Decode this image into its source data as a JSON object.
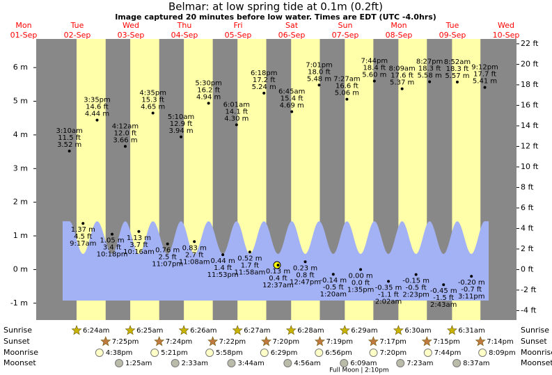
{
  "header": {
    "title": "Belmar: at low  spring tide at 0.1m (0.2ft)",
    "subtitle": "Image captured 20 minutes before low water. Times are EDT (UTC -4.0hrs)"
  },
  "chart_data": {
    "type": "tide",
    "ylim": [
      -1.5,
      6.85
    ],
    "yticks": [
      {
        "value": -1,
        "label": "-1 m"
      },
      {
        "value": 0,
        "label": "0 m"
      },
      {
        "value": 1,
        "label": "1 m"
      },
      {
        "value": 2,
        "label": "2 m"
      },
      {
        "value": 3,
        "label": "3 m"
      },
      {
        "value": 4,
        "label": "4 m"
      },
      {
        "value": 5,
        "label": "5 m"
      },
      {
        "value": 6,
        "label": "6 m"
      }
    ],
    "y2lim": [
      -4.92,
      22.47
    ],
    "y2ticks": [
      {
        "value": -4,
        "label": "-4 ft"
      },
      {
        "value": -2,
        "label": "-2 ft"
      },
      {
        "value": 0,
        "label": "0 ft"
      },
      {
        "value": 2,
        "label": "2 ft"
      },
      {
        "value": 4,
        "label": "4 ft"
      },
      {
        "value": 6,
        "label": "6 ft"
      },
      {
        "value": 8,
        "label": "8 ft"
      },
      {
        "value": 10,
        "label": "10 ft"
      },
      {
        "value": 12,
        "label": "12 ft"
      },
      {
        "value": 14,
        "label": "14 ft"
      },
      {
        "value": 16,
        "label": "16 ft"
      },
      {
        "value": 18,
        "label": "18 ft"
      },
      {
        "value": 20,
        "label": "20 ft"
      },
      {
        "value": 22,
        "label": "22 ft"
      }
    ],
    "row_labels": [
      "Sunrise",
      "Sunset",
      "Moonrise",
      "Moonset"
    ],
    "days": [
      {
        "weekday": "Mon",
        "date": "01-Sep"
      },
      {
        "weekday": "Tue",
        "date": "02-Sep",
        "sunrise": "6:24am",
        "sunset": "7:25pm",
        "moonrise": "4:38pm",
        "tides": [
          {
            "time": "3:10am",
            "feet": {
              "value": 11.5,
              "label": "11.5 ft"
            },
            "meters": {
              "value": 3.52,
              "label": "3.52 m"
            }
          },
          {
            "time": "9:17am",
            "feet": {
              "value": 4.5,
              "label": "4.5 ft"
            },
            "meters": {
              "value": 1.37,
              "label": "1.37 m"
            }
          },
          {
            "time": "3:35pm",
            "feet": {
              "value": 14.6,
              "label": "14.6 ft"
            },
            "meters": {
              "value": 4.44,
              "label": "4.44 m"
            }
          },
          {
            "time": "10:18pm",
            "feet": {
              "value": 3.4,
              "label": "3.4 ft"
            },
            "meters": {
              "value": 1.05,
              "label": "1.05 m"
            }
          }
        ]
      },
      {
        "weekday": "Wed",
        "date": "03-Sep",
        "sunrise": "6:25am",
        "sunset": "7:24pm",
        "moonrise": "5:21pm",
        "moonset": "1:25am",
        "tides": [
          {
            "time": "4:12am",
            "feet": {
              "value": 12.0,
              "label": "12.0 ft"
            },
            "meters": {
              "value": 3.66,
              "label": "3.66 m"
            }
          },
          {
            "time": "10:16am",
            "feet": {
              "value": 3.7,
              "label": "3.7 ft"
            },
            "meters": {
              "value": 1.13,
              "label": "1.13 m"
            }
          },
          {
            "time": "4:35pm",
            "feet": {
              "value": 15.3,
              "label": "15.3 ft"
            },
            "meters": {
              "value": 4.65,
              "label": "4.65 m"
            }
          },
          {
            "time": "11:07pm",
            "feet": {
              "value": 2.5,
              "label": "2.5 ft"
            },
            "meters": {
              "value": 0.76,
              "label": "0.76 m"
            }
          }
        ]
      },
      {
        "weekday": "Thu",
        "date": "04-Sep",
        "sunrise": "6:26am",
        "sunset": "7:22pm",
        "moonrise": "5:58pm",
        "moonset": "2:33am",
        "tides": [
          {
            "time": "5:10am",
            "feet": {
              "value": 12.9,
              "label": "12.9 ft"
            },
            "meters": {
              "value": 3.94,
              "label": "3.94 m"
            }
          },
          {
            "time": "11:08am",
            "feet": {
              "value": 2.7,
              "label": "2.7 ft"
            },
            "meters": {
              "value": 0.83,
              "label": "0.83 m"
            }
          },
          {
            "time": "5:30pm",
            "feet": {
              "value": 16.2,
              "label": "16.2 ft"
            },
            "meters": {
              "value": 4.94,
              "label": "4.94 m"
            }
          },
          {
            "time": "11:53pm",
            "feet": {
              "value": 1.4,
              "label": "1.4 ft"
            },
            "meters": {
              "value": 0.44,
              "label": "0.44 m"
            }
          }
        ]
      },
      {
        "weekday": "Fri",
        "date": "05-Sep",
        "sunrise": "6:27am",
        "sunset": "7:20pm",
        "moonrise": "6:29pm",
        "moonset": "3:44am",
        "tides": [
          {
            "time": "6:01am",
            "feet": {
              "value": 14.1,
              "label": "14.1 ft"
            },
            "meters": {
              "value": 4.3,
              "label": "4.30 m"
            }
          },
          {
            "time": "11:58am",
            "feet": {
              "value": 1.7,
              "label": "1.7 ft"
            },
            "meters": {
              "value": 0.52,
              "label": "0.52 m"
            }
          },
          {
            "time": "6:18pm",
            "feet": {
              "value": 17.2,
              "label": "17.2 ft"
            },
            "meters": {
              "value": 5.24,
              "label": "5.24 m"
            }
          }
        ]
      },
      {
        "weekday": "Sat",
        "date": "06-Sep",
        "sunrise": "6:28am",
        "sunset": "7:19pm",
        "moonrise": "6:56pm",
        "moonset": "4:56am",
        "tides": [
          {
            "time": "12:37am",
            "feet": {
              "value": 0.4,
              "label": "0.4 ft"
            },
            "meters": {
              "value": 0.13,
              "label": "0.13 m"
            }
          },
          {
            "time": "6:45am",
            "feet": {
              "value": 15.4,
              "label": "15.4 ft"
            },
            "meters": {
              "value": 4.69,
              "label": "4.69 m"
            }
          },
          {
            "time": "12:47pm",
            "feet": {
              "value": 0.8,
              "label": "0.8 ft"
            },
            "meters": {
              "value": 0.23,
              "label": "0.23 m"
            }
          },
          {
            "time": "7:01pm",
            "feet": {
              "value": 18.0,
              "label": "18.0 ft"
            },
            "meters": {
              "value": 5.48,
              "label": "5.48 m"
            }
          }
        ]
      },
      {
        "weekday": "Sun",
        "date": "07-Sep",
        "sunrise": "6:29am",
        "sunset": "7:17pm",
        "moonrise": "7:20pm",
        "moonset": "6:09am",
        "moon_phase": {
          "name": "Full Moon",
          "time": "2:10pm"
        },
        "tides": [
          {
            "time": "1:20am",
            "feet": {
              "value": -0.5,
              "label": "-0.5 ft"
            },
            "meters": {
              "value": -0.14,
              "label": "-0.14 m"
            }
          },
          {
            "time": "7:27am",
            "feet": {
              "value": 16.6,
              "label": "16.6 ft"
            },
            "meters": {
              "value": 5.06,
              "label": "5.06 m"
            }
          },
          {
            "time": "1:35pm",
            "feet": {
              "value": 0.0,
              "label": "0.0 ft"
            },
            "meters": {
              "value": 0.0,
              "label": "0.00 m"
            }
          },
          {
            "time": "7:44pm",
            "feet": {
              "value": 18.4,
              "label": "18.4 ft"
            },
            "meters": {
              "value": 5.6,
              "label": "5.60 m"
            }
          }
        ]
      },
      {
        "weekday": "Mon",
        "date": "08-Sep",
        "sunrise": "6:30am",
        "sunset": "7:15pm",
        "moonrise": "7:44pm",
        "moonset": "7:23am",
        "tides": [
          {
            "time": "2:02am",
            "feet": {
              "value": -1.1,
              "label": "-1.1 ft"
            },
            "meters": {
              "value": -0.35,
              "label": "-0.35 m"
            }
          },
          {
            "time": "8:09am",
            "feet": {
              "value": 17.6,
              "label": "17.6 ft"
            },
            "meters": {
              "value": 5.37,
              "label": "5.37 m"
            }
          },
          {
            "time": "2:23pm",
            "feet": {
              "value": -0.5,
              "label": "-0.5 ft"
            },
            "meters": {
              "value": -0.15,
              "label": "-0.15 m"
            }
          },
          {
            "time": "8:27pm",
            "feet": {
              "value": 18.3,
              "label": "18.3 ft"
            },
            "meters": {
              "value": 5.58,
              "label": "5.58 m"
            }
          }
        ]
      },
      {
        "weekday": "Tue",
        "date": "09-Sep",
        "sunrise": "6:31am",
        "sunset": "7:14pm",
        "moonrise": "8:09pm",
        "moonset": "8:37am",
        "tides": [
          {
            "time": "2:43am",
            "feet": {
              "value": -1.5,
              "label": "-1.5 ft"
            },
            "meters": {
              "value": -0.45,
              "label": "-0.45 m"
            }
          },
          {
            "time": "8:52am",
            "feet": {
              "value": 18.3,
              "label": "18.3 ft"
            },
            "meters": {
              "value": 5.57,
              "label": "5.57 m"
            }
          },
          {
            "time": "3:11pm",
            "feet": {
              "value": -0.7,
              "label": "-0.7 ft"
            },
            "meters": {
              "value": -0.2,
              "label": "-0.20 m"
            }
          },
          {
            "time": "9:12pm",
            "feet": {
              "value": 17.7,
              "label": "17.7 ft"
            },
            "meters": {
              "value": 5.41,
              "label": "5.41 m"
            }
          }
        ]
      },
      {
        "weekday": "Wed",
        "date": "10-Sep"
      }
    ]
  }
}
